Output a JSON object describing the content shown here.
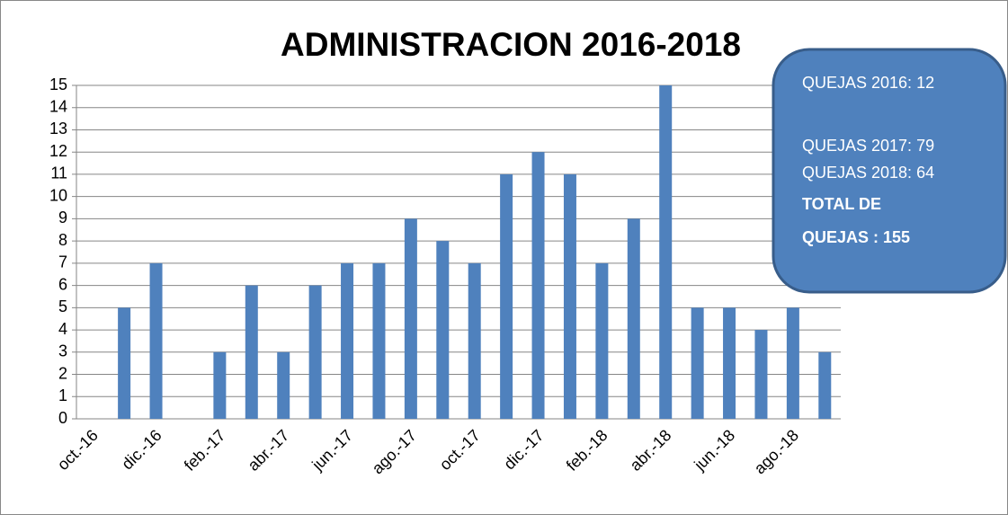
{
  "chart_data": {
    "type": "bar",
    "title": "ADMINISTRACION 2016-2018",
    "categories": [
      "oct.-16",
      null,
      "dic.-16",
      null,
      "feb.-17",
      null,
      "abr.-17",
      null,
      "jun.-17",
      null,
      "ago.-17",
      null,
      "oct.-17",
      null,
      "dic.-17",
      null,
      "feb.-18",
      null,
      "abr.-18",
      null,
      "jun.-18",
      null,
      "ago.-18",
      null
    ],
    "values": [
      0,
      5,
      7,
      0,
      3,
      6,
      3,
      6,
      7,
      7,
      9,
      8,
      7,
      11,
      12,
      11,
      7,
      9,
      15,
      5,
      5,
      4,
      5,
      3
    ],
    "color": "#4f81bd",
    "ylim": [
      0,
      15
    ],
    "yticks": [
      0,
      1,
      2,
      3,
      4,
      5,
      6,
      7,
      8,
      9,
      10,
      11,
      12,
      13,
      14,
      15
    ],
    "grid": true,
    "annotations": [
      "QUEJAS  2016: 12",
      "QUEJAS 2017: 79",
      "QUEJAS 2018: 64",
      "TOTAL DE",
      "QUEJAS : 155"
    ]
  }
}
